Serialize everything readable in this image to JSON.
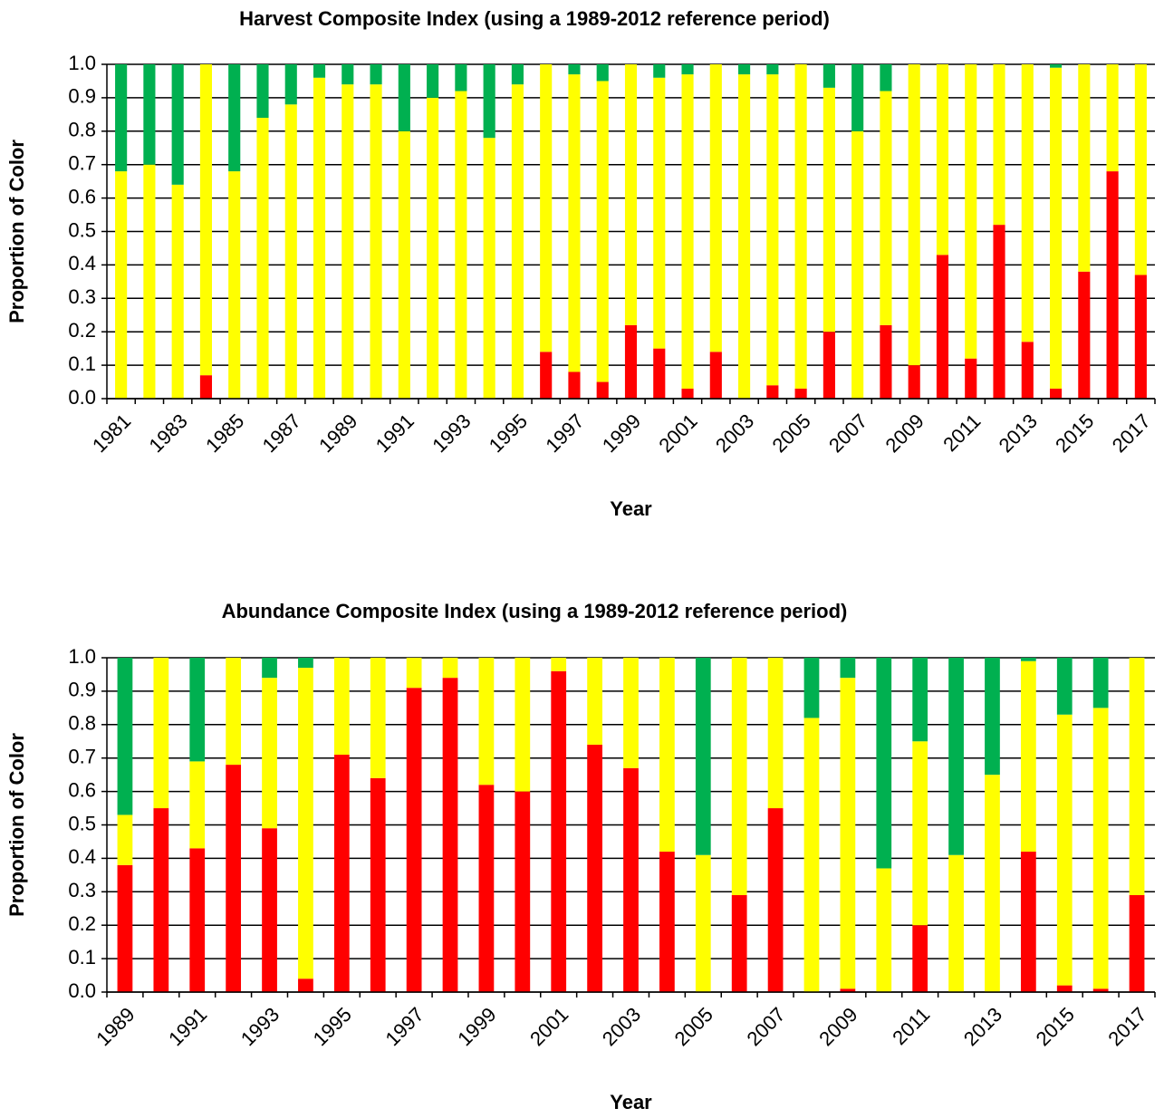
{
  "chart_data": [
    {
      "type": "bar",
      "stacked": true,
      "grid": true,
      "title": "Harvest Composite Index (using a 1989-2012 reference period)",
      "x_label": "Year",
      "y_label": "Proportion of Color",
      "categories": [
        "1981",
        null,
        "1983",
        null,
        "1985",
        null,
        "1987",
        null,
        "1989",
        null,
        "1991",
        null,
        "1993",
        null,
        "1995",
        null,
        "1997",
        null,
        "1999",
        null,
        "2001",
        null,
        "2003",
        null,
        "2005",
        null,
        "2007",
        null,
        "2009",
        null,
        "2011",
        null,
        "2013",
        null,
        "2015",
        null,
        "2017"
      ],
      "ylim": [
        0,
        1
      ],
      "yticks": [
        {
          "value": 0,
          "label": "0.0"
        },
        0.1,
        0.2,
        0.3,
        0.4,
        0.5,
        0.6,
        0.7,
        0.8,
        0.9,
        {
          "value": 1,
          "label": "1.0"
        }
      ],
      "series": [
        {
          "color": "#ff0000",
          "values": [
            0,
            0,
            0,
            0.07,
            0,
            0,
            0,
            0,
            0,
            0,
            0,
            0,
            0,
            0,
            0,
            0.14,
            0.08,
            0.05,
            0.22,
            0.15,
            0.03,
            0.14,
            0,
            0.04,
            0.03,
            0.2,
            0,
            0.22,
            0.1,
            0.43,
            0.12,
            0.52,
            0.17,
            0.03,
            0.38,
            0.68,
            0.37
          ]
        },
        {
          "color": "#ffff00",
          "values": [
            0.68,
            0.7,
            0.64,
            0.93,
            0.68,
            0.84,
            0.88,
            0.96,
            0.94,
            0.94,
            0.8,
            0.9,
            0.92,
            0.78,
            0.94,
            0.86,
            0.89,
            0.9,
            0.78,
            0.81,
            0.94,
            0.86,
            0.97,
            0.93,
            0.97,
            0.73,
            0.8,
            0.7,
            0.9,
            0.57,
            0.88,
            0.48,
            0.83,
            0.96,
            0.62,
            0.32,
            0.63
          ]
        },
        {
          "color": "#00b050",
          "values": [
            0.32,
            0.3,
            0.36,
            0,
            0.32,
            0.16,
            0.12,
            0.04,
            0.06,
            0.06,
            0.2,
            0.1,
            0.08,
            0.22,
            0.06,
            0,
            0.03,
            0.05,
            0,
            0.04,
            0.03,
            0,
            0.03,
            0.03,
            0,
            0.07,
            0.2,
            0.08,
            0,
            0,
            0,
            0,
            0,
            0.01,
            0,
            0,
            0
          ]
        }
      ]
    },
    {
      "type": "bar",
      "stacked": true,
      "grid": true,
      "title": "Abundance Composite Index (using a 1989-2012 reference period)",
      "x_label": "Year",
      "y_label": "Proportion of Color",
      "categories": [
        "1989",
        null,
        "1991",
        null,
        "1993",
        null,
        "1995",
        null,
        "1997",
        null,
        "1999",
        null,
        "2001",
        null,
        "2003",
        null,
        "2005",
        null,
        "2007",
        null,
        "2009",
        null,
        "2011",
        null,
        "2013",
        null,
        "2015",
        null,
        "2017"
      ],
      "ylim": [
        0,
        1
      ],
      "yticks": [
        {
          "value": 0,
          "label": "0.0"
        },
        0.1,
        0.2,
        0.3,
        0.4,
        0.5,
        0.6,
        0.7,
        0.8,
        0.9,
        {
          "value": 1,
          "label": "1.0"
        }
      ],
      "series": [
        {
          "color": "#ff0000",
          "values": [
            0.38,
            0.55,
            0.43,
            0.68,
            0.49,
            0.04,
            0.71,
            0.64,
            0.91,
            0.94,
            0.62,
            0.6,
            0.96,
            0.74,
            0.67,
            0.42,
            0,
            0.29,
            0.55,
            0,
            0.01,
            0,
            0.2,
            0,
            0,
            0.42,
            0.02,
            0.01,
            0.29
          ]
        },
        {
          "color": "#ffff00",
          "values": [
            0.15,
            0.45,
            0.26,
            0.32,
            0.45,
            0.93,
            0.29,
            0.36,
            0.09,
            0.06,
            0.38,
            0.4,
            0.04,
            0.26,
            0.33,
            0.58,
            0.41,
            0.71,
            0.45,
            0.82,
            0.93,
            0.37,
            0.55,
            0.41,
            0.65,
            0.57,
            0.81,
            0.84,
            0.71
          ]
        },
        {
          "color": "#00b050",
          "values": [
            0.47,
            0,
            0.31,
            0,
            0.06,
            0.03,
            0,
            0,
            0,
            0,
            0,
            0,
            0,
            0,
            0,
            0,
            0.59,
            0,
            0,
            0.18,
            0.06,
            0.63,
            0.25,
            0.59,
            0.35,
            0.01,
            0.17,
            0.15,
            0
          ]
        }
      ]
    }
  ]
}
